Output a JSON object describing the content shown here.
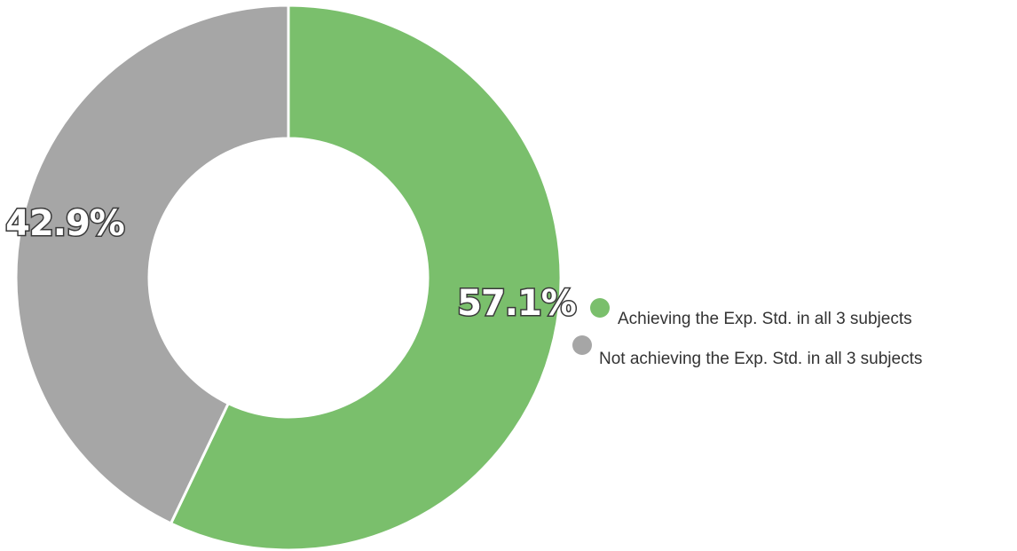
{
  "chart_data": {
    "type": "pie",
    "donut": true,
    "categories": [
      "Achieving the Exp. Std. in all 3 subjects",
      "Not achieving the Exp. Std. in all 3 subjects"
    ],
    "values": [
      57.1,
      42.9
    ],
    "data_labels": [
      "57.1%",
      "42.9%"
    ],
    "colors": [
      "#7abf6c",
      "#a6a6a6"
    ],
    "legend_position": "right"
  }
}
